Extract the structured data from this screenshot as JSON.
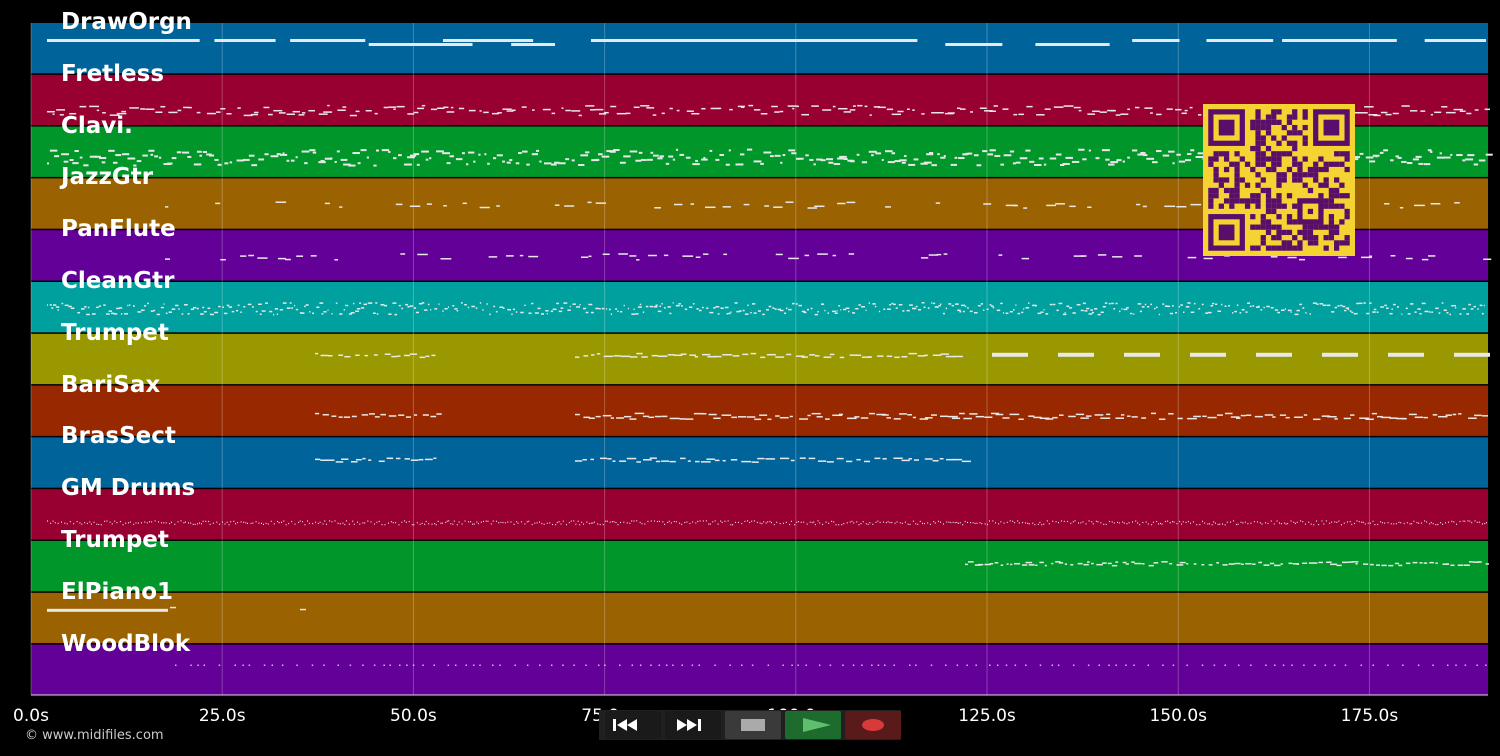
{
  "app": {
    "copyright": "© www.midifiles.com"
  },
  "colors": {
    "background": "#000000",
    "note": "#e8e8e8",
    "gridline": "#ffffff",
    "qr_fg": "#5a0e6a",
    "qr_bg": "#f5d332"
  },
  "tracks": [
    {
      "name": "DrawOrgn",
      "color": "#00639a",
      "pattern": "sustain"
    },
    {
      "name": "Fretless",
      "color": "#980031",
      "pattern": "bass"
    },
    {
      "name": "Clavi.",
      "color": "#00962a",
      "pattern": "dense"
    },
    {
      "name": "JazzGtr",
      "color": "#9a6200",
      "pattern": "sparse"
    },
    {
      "name": "PanFlute",
      "color": "#620098",
      "pattern": "sparse"
    },
    {
      "name": "CleanGtr",
      "color": "#00a09e",
      "pattern": "dots"
    },
    {
      "name": "Trumpet",
      "color": "#9a9800",
      "pattern": "horns_a"
    },
    {
      "name": "BariSax",
      "color": "#982800",
      "pattern": "horns_b"
    },
    {
      "name": "BrasSect",
      "color": "#00639a",
      "pattern": "horns_c"
    },
    {
      "name": "GM Drums",
      "color": "#980031",
      "pattern": "drums"
    },
    {
      "name": "Trumpet",
      "color": "#00962a",
      "pattern": "late"
    },
    {
      "name": "ElPiano1",
      "color": "#9a6200",
      "pattern": "intro"
    },
    {
      "name": "WoodBlok",
      "color": "#620098",
      "pattern": "ticks"
    }
  ],
  "timeline": {
    "max_seconds": 190.5,
    "ticks": [
      {
        "value": 0,
        "label": "0.0s"
      },
      {
        "value": 25,
        "label": "25.0s"
      },
      {
        "value": 50,
        "label": "50.0s"
      },
      {
        "value": 75,
        "label": "75.0s"
      },
      {
        "value": 100,
        "label": "100.0s"
      },
      {
        "value": 125,
        "label": "125.0s"
      },
      {
        "value": 150,
        "label": "150.0s"
      },
      {
        "value": 175,
        "label": "175.0s"
      }
    ]
  },
  "transport": {
    "buttons": [
      {
        "name": "rewind",
        "icon": "rewind-icon",
        "bg": "#1a1a1a"
      },
      {
        "name": "fast-forward",
        "icon": "fast-forward-icon",
        "bg": "#1a1a1a"
      },
      {
        "name": "stop",
        "icon": "stop-icon",
        "bg": "#3a3a3a"
      },
      {
        "name": "play",
        "icon": "play-icon",
        "bg": "#1e6b2e"
      },
      {
        "name": "record",
        "icon": "record-icon",
        "bg": "#5a1a1a"
      }
    ]
  },
  "overlay": {
    "icon": "qr-code-icon"
  }
}
